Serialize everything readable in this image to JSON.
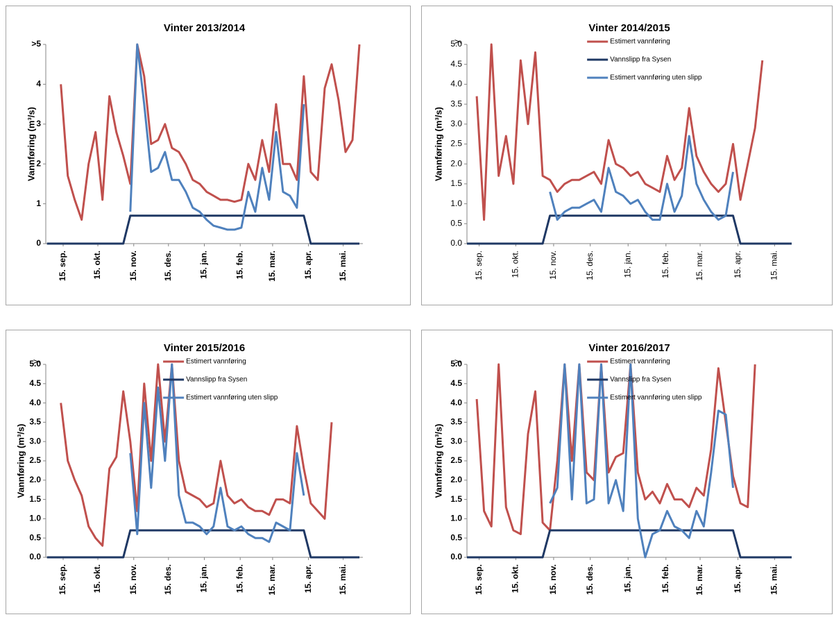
{
  "chart_data": [
    {
      "type": "line",
      "title": "Vinter 2013/2014",
      "y_label": "Vannføring (m³/s)",
      "x": [
        0,
        6,
        12,
        18,
        24,
        30,
        36,
        42,
        48,
        54,
        60,
        66,
        72,
        78,
        84,
        90,
        96,
        102,
        108,
        114,
        120,
        126,
        132,
        138,
        144,
        150,
        156,
        162,
        168,
        174,
        180,
        186,
        192,
        198,
        204,
        210,
        216,
        222,
        228,
        234,
        240,
        246,
        252,
        258,
        264,
        270
      ],
      "xlim": [
        -1,
        273
      ],
      "xticks": [
        {
          "value": 14,
          "label": "15. sep."
        },
        {
          "value": 44,
          "label": "15. okt."
        },
        {
          "value": 75,
          "label": "15. nov."
        },
        {
          "value": 105,
          "label": "15. des."
        },
        {
          "value": 136,
          "label": "15. jan."
        },
        {
          "value": 167,
          "label": "15. feb."
        },
        {
          "value": 195,
          "label": "15. mar."
        },
        {
          "value": 226,
          "label": "15. apr."
        },
        {
          "value": 256,
          "label": "15. mai."
        }
      ],
      "ylim": [
        0,
        5
      ],
      "yticks": [
        0,
        1,
        2,
        3,
        4,
        {
          "value": 5,
          "label": ">5"
        }
      ],
      "legend": false,
      "series": [
        {
          "color": "#c0504d",
          "values": [
            null,
            null,
            4.0,
            1.7,
            1.1,
            0.6,
            2.0,
            2.8,
            1.1,
            3.7,
            2.8,
            2.2,
            1.5,
            5.0,
            4.2,
            2.5,
            2.6,
            3.0,
            2.4,
            2.3,
            2.0,
            1.6,
            1.5,
            1.3,
            1.2,
            1.1,
            1.1,
            1.05,
            1.1,
            2.0,
            1.6,
            2.6,
            1.8,
            3.5,
            2.0,
            2.0,
            1.6,
            4.2,
            1.8,
            1.6,
            3.9,
            4.5,
            3.6,
            2.3,
            2.6,
            5.0
          ]
        },
        {
          "color": "#1f3864",
          "values": [
            0,
            0,
            0,
            0,
            0,
            0,
            0,
            0,
            0,
            0,
            0,
            0,
            0.7,
            0.7,
            0.7,
            0.7,
            0.7,
            0.7,
            0.7,
            0.7,
            0.7,
            0.7,
            0.7,
            0.7,
            0.7,
            0.7,
            0.7,
            0.7,
            0.7,
            0.7,
            0.7,
            0.7,
            0.7,
            0.7,
            0.7,
            0.7,
            0.7,
            0.7,
            0,
            0,
            0,
            0,
            0,
            0,
            0,
            0
          ]
        },
        {
          "color": "#4f81bd",
          "values": [
            null,
            null,
            null,
            null,
            null,
            null,
            null,
            null,
            null,
            null,
            null,
            null,
            0.8,
            5.0,
            3.5,
            1.8,
            1.9,
            2.3,
            1.6,
            1.6,
            1.3,
            0.9,
            0.8,
            0.6,
            0.45,
            0.4,
            0.35,
            0.35,
            0.4,
            1.3,
            0.8,
            1.9,
            1.1,
            2.8,
            1.3,
            1.2,
            0.9,
            3.5,
            null,
            null,
            null,
            null,
            null,
            null,
            null,
            null
          ]
        }
      ]
    },
    {
      "type": "line",
      "title": "Vinter 2014/2015",
      "y_label": "Vannføring (m³/s)",
      "annotation": "y",
      "x": [
        0,
        6,
        12,
        18,
        24,
        30,
        36,
        42,
        48,
        54,
        60,
        66,
        72,
        78,
        84,
        90,
        96,
        102,
        108,
        114,
        120,
        126,
        132,
        138,
        144,
        150,
        156,
        162,
        168,
        174,
        180,
        186,
        192,
        198,
        204,
        210,
        216,
        222,
        228,
        234,
        240,
        246,
        252,
        258,
        264,
        270
      ],
      "xlim": [
        4,
        270
      ],
      "xticks": [
        {
          "value": 14,
          "label": "15. sep."
        },
        {
          "value": 44,
          "label": "15. okt."
        },
        {
          "value": 75,
          "label": "15. nov."
        },
        {
          "value": 105,
          "label": "15. des."
        },
        {
          "value": 136,
          "label": "15. jan."
        },
        {
          "value": 167,
          "label": "15. feb."
        },
        {
          "value": 195,
          "label": "15. mar."
        },
        {
          "value": 226,
          "label": "15. apr."
        },
        {
          "value": 256,
          "label": "15. mai."
        }
      ],
      "ylim": [
        0,
        5
      ],
      "yticks": [
        {
          "value": 0,
          "label": "0.0"
        },
        {
          "value": 0.5,
          "label": "0.5"
        },
        {
          "value": 1,
          "label": "1.0"
        },
        {
          "value": 1.5,
          "label": "1.5"
        },
        {
          "value": 2,
          "label": "2.0"
        },
        {
          "value": 2.5,
          "label": "2.5"
        },
        {
          "value": 3,
          "label": "3.0"
        },
        {
          "value": 3.5,
          "label": "3.5"
        },
        {
          "value": 4,
          "label": "4.0"
        },
        {
          "value": 4.5,
          "label": "4.5"
        },
        {
          "value": 5,
          "label": "5.0"
        }
      ],
      "legend": "top",
      "series": [
        {
          "name": "Estimert vannføring",
          "color": "#c0504d",
          "values": [
            null,
            null,
            3.7,
            0.6,
            5.0,
            1.7,
            2.7,
            1.5,
            4.6,
            3.0,
            4.8,
            1.7,
            1.6,
            1.3,
            1.5,
            1.6,
            1.6,
            1.7,
            1.8,
            1.5,
            2.6,
            2.0,
            1.9,
            1.7,
            1.8,
            1.5,
            1.4,
            1.3,
            2.2,
            1.6,
            1.9,
            3.4,
            2.2,
            1.8,
            1.5,
            1.3,
            1.5,
            2.5,
            1.1,
            2.0,
            2.9,
            4.6,
            null,
            null,
            null,
            null
          ]
        },
        {
          "name": "Vannslipp fra Sysen",
          "color": "#1f3864",
          "values": [
            0,
            0,
            0,
            0,
            0,
            0,
            0,
            0,
            0,
            0,
            0,
            0,
            0.7,
            0.7,
            0.7,
            0.7,
            0.7,
            0.7,
            0.7,
            0.7,
            0.7,
            0.7,
            0.7,
            0.7,
            0.7,
            0.7,
            0.7,
            0.7,
            0.7,
            0.7,
            0.7,
            0.7,
            0.7,
            0.7,
            0.7,
            0.7,
            0.7,
            0.7,
            0,
            0,
            0,
            0,
            0,
            0,
            0,
            0
          ]
        },
        {
          "name": "Estimert vannføring uten slipp",
          "color": "#4f81bd",
          "values": [
            null,
            null,
            null,
            null,
            null,
            null,
            null,
            null,
            null,
            null,
            null,
            null,
            1.3,
            0.6,
            0.8,
            0.9,
            0.9,
            1.0,
            1.1,
            0.8,
            1.9,
            1.3,
            1.2,
            1.0,
            1.1,
            0.8,
            0.6,
            0.6,
            1.5,
            0.8,
            1.2,
            2.7,
            1.5,
            1.1,
            0.8,
            0.6,
            0.7,
            1.8,
            null,
            null,
            null,
            null,
            null,
            null,
            null,
            null
          ]
        }
      ]
    },
    {
      "type": "line",
      "title": "Vinter 2015/2016",
      "y_label": "Vannføring (m³/s)",
      "annotation": "y",
      "x": [
        0,
        6,
        12,
        18,
        24,
        30,
        36,
        42,
        48,
        54,
        60,
        66,
        72,
        78,
        84,
        90,
        96,
        102,
        108,
        114,
        120,
        126,
        132,
        138,
        144,
        150,
        156,
        162,
        168,
        174,
        180,
        186,
        192,
        198,
        204,
        210,
        216,
        222,
        228,
        234,
        240,
        246,
        252,
        258,
        264,
        270
      ],
      "xlim": [
        -1,
        273
      ],
      "xticks": [
        {
          "value": 14,
          "label": "15. sep."
        },
        {
          "value": 44,
          "label": "15. okt."
        },
        {
          "value": 75,
          "label": "15. nov."
        },
        {
          "value": 105,
          "label": "15. des."
        },
        {
          "value": 136,
          "label": "15. jan."
        },
        {
          "value": 167,
          "label": "15. feb."
        },
        {
          "value": 195,
          "label": "15. mar."
        },
        {
          "value": 226,
          "label": "15. apr."
        },
        {
          "value": 256,
          "label": "15. mai."
        }
      ],
      "ylim": [
        0,
        5
      ],
      "yticks": [
        {
          "value": 0,
          "label": "0.0"
        },
        {
          "value": 0.5,
          "label": "0.5"
        },
        {
          "value": 1,
          "label": "1.0"
        },
        {
          "value": 1.5,
          "label": "1.5"
        },
        {
          "value": 2,
          "label": "2.0"
        },
        {
          "value": 2.5,
          "label": "2.5"
        },
        {
          "value": 3,
          "label": "3.0"
        },
        {
          "value": 3.5,
          "label": "3.5"
        },
        {
          "value": 4,
          "label": "4.0"
        },
        {
          "value": 4.5,
          "label": "4.5"
        },
        {
          "value": 5,
          "label": "5.0"
        }
      ],
      "legend": "top",
      "series": [
        {
          "name": "Estimert vannføring",
          "color": "#c0504d",
          "values": [
            null,
            null,
            4.0,
            2.5,
            2.0,
            1.6,
            0.8,
            0.5,
            0.3,
            2.3,
            2.6,
            4.3,
            3.0,
            1.2,
            4.5,
            2.5,
            5.0,
            3.0,
            5.0,
            2.5,
            1.7,
            1.6,
            1.5,
            1.3,
            1.4,
            2.5,
            1.6,
            1.4,
            1.5,
            1.3,
            1.2,
            1.2,
            1.1,
            1.5,
            1.5,
            1.4,
            3.4,
            2.3,
            1.4,
            1.2,
            1.0,
            3.5,
            null,
            null,
            null,
            null
          ]
        },
        {
          "name": "Vannslipp fra Sysen",
          "color": "#1f3864",
          "values": [
            0,
            0,
            0,
            0,
            0,
            0,
            0,
            0,
            0,
            0,
            0,
            0,
            0.7,
            0.7,
            0.7,
            0.7,
            0.7,
            0.7,
            0.7,
            0.7,
            0.7,
            0.7,
            0.7,
            0.7,
            0.7,
            0.7,
            0.7,
            0.7,
            0.7,
            0.7,
            0.7,
            0.7,
            0.7,
            0.7,
            0.7,
            0.7,
            0.7,
            0.7,
            0,
            0,
            0,
            0,
            0,
            0,
            0,
            0
          ]
        },
        {
          "name": "Estimert vannføring uten slipp",
          "color": "#4f81bd",
          "values": [
            null,
            null,
            null,
            null,
            null,
            null,
            null,
            null,
            null,
            null,
            null,
            null,
            2.7,
            0.6,
            4.0,
            1.8,
            4.4,
            2.5,
            5.0,
            1.6,
            0.9,
            0.9,
            0.8,
            0.6,
            0.8,
            1.8,
            0.8,
            0.7,
            0.8,
            0.6,
            0.5,
            0.5,
            0.4,
            0.9,
            0.8,
            0.7,
            2.7,
            1.6,
            null,
            null,
            null,
            null,
            null,
            null,
            null,
            null
          ]
        }
      ]
    },
    {
      "type": "line",
      "title": "Vinter 2016/2017",
      "y_label": "Vannføring (m³/s)",
      "annotation": "y",
      "x": [
        0,
        6,
        12,
        18,
        24,
        30,
        36,
        42,
        48,
        54,
        60,
        66,
        72,
        78,
        84,
        90,
        96,
        102,
        108,
        114,
        120,
        126,
        132,
        138,
        144,
        150,
        156,
        162,
        168,
        174,
        180,
        186,
        192,
        198,
        204,
        210,
        216,
        222,
        228,
        234,
        240,
        246,
        252,
        258,
        264,
        270
      ],
      "xlim": [
        4,
        270
      ],
      "xticks": [
        {
          "value": 14,
          "label": "15. sep."
        },
        {
          "value": 44,
          "label": "15. okt."
        },
        {
          "value": 75,
          "label": "15. nov."
        },
        {
          "value": 105,
          "label": "15. des."
        },
        {
          "value": 136,
          "label": "15. jan."
        },
        {
          "value": 167,
          "label": "15. feb."
        },
        {
          "value": 195,
          "label": "15. mar."
        },
        {
          "value": 226,
          "label": "15. apr."
        },
        {
          "value": 256,
          "label": "15. mai."
        }
      ],
      "ylim": [
        0,
        5
      ],
      "yticks": [
        {
          "value": 0,
          "label": "0.0"
        },
        {
          "value": 0.5,
          "label": "0.5"
        },
        {
          "value": 1,
          "label": "1.0"
        },
        {
          "value": 1.5,
          "label": "1.5"
        },
        {
          "value": 2,
          "label": "2.0"
        },
        {
          "value": 2.5,
          "label": "2.5"
        },
        {
          "value": 3,
          "label": "3.0"
        },
        {
          "value": 3.5,
          "label": "3.5"
        },
        {
          "value": 4,
          "label": "4.0"
        },
        {
          "value": 4.5,
          "label": "4.5"
        },
        {
          "value": 5,
          "label": "5.0"
        }
      ],
      "legend": "top",
      "series": [
        {
          "name": "Estimert vannføring",
          "color": "#c0504d",
          "values": [
            null,
            null,
            4.1,
            1.2,
            0.8,
            5.0,
            1.3,
            0.7,
            0.6,
            3.2,
            4.3,
            0.9,
            0.7,
            2.5,
            5.0,
            2.5,
            5.0,
            2.2,
            2.0,
            5.0,
            2.2,
            2.6,
            2.7,
            5.0,
            2.2,
            1.5,
            1.7,
            1.4,
            1.9,
            1.5,
            1.5,
            1.3,
            1.8,
            1.6,
            2.8,
            4.9,
            3.5,
            2.1,
            1.4,
            1.3,
            5.0,
            null,
            null,
            null,
            null,
            null
          ]
        },
        {
          "name": "Vannslipp fra Sysen",
          "color": "#1f3864",
          "values": [
            0,
            0,
            0,
            0,
            0,
            0,
            0,
            0,
            0,
            0,
            0,
            0,
            0.7,
            0.7,
            0.7,
            0.7,
            0.7,
            0.7,
            0.7,
            0.7,
            0.7,
            0.7,
            0.7,
            0.7,
            0.7,
            0.7,
            0.7,
            0.7,
            0.7,
            0.7,
            0.7,
            0.7,
            0.7,
            0.7,
            0.7,
            0.7,
            0.7,
            0.7,
            0,
            0,
            0,
            0,
            0,
            0,
            0,
            0
          ]
        },
        {
          "name": "Estimert vannføring uten slipp",
          "color": "#4f81bd",
          "values": [
            null,
            null,
            null,
            null,
            null,
            null,
            null,
            null,
            null,
            null,
            null,
            null,
            1.4,
            1.8,
            5.0,
            1.5,
            5.0,
            1.4,
            1.5,
            5.0,
            1.4,
            2.0,
            1.2,
            5.0,
            1.0,
            0.0,
            0.6,
            0.7,
            1.2,
            0.8,
            0.7,
            0.5,
            1.2,
            0.8,
            2.2,
            3.8,
            3.7,
            1.8,
            null,
            null,
            null,
            null,
            null,
            null,
            null,
            null
          ]
        }
      ]
    }
  ]
}
